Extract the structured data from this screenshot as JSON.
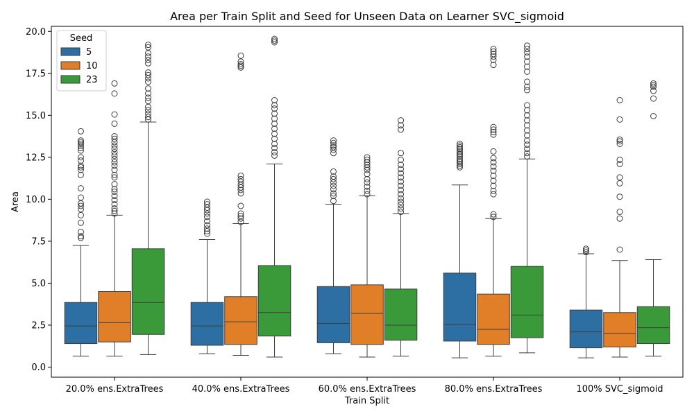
{
  "chart_data": {
    "type": "box",
    "title": "Area per Train Split and Seed for Unseen Data on Learner SVC_sigmoid",
    "xlabel": "Train Split",
    "ylabel": "Area",
    "ylim": [
      -0.6,
      20.3
    ],
    "yticks": [
      "0.0",
      "2.5",
      "5.0",
      "7.5",
      "10.0",
      "12.5",
      "15.0",
      "17.5",
      "20.0"
    ],
    "categories": [
      "20.0% ens.ExtraTrees",
      "40.0% ens.ExtraTrees",
      "60.0% ens.ExtraTrees",
      "80.0% ens.ExtraTrees",
      "100% SVC_sigmoid"
    ],
    "legend": {
      "title": "Seed",
      "position": "upper-left",
      "entries": [
        "5",
        "10",
        "23"
      ]
    },
    "colors": [
      "#2d6fa3",
      "#e07f27",
      "#3a9a3a"
    ],
    "grid": false,
    "series": [
      {
        "name": "5",
        "boxes": [
          {
            "whislo": 0.65,
            "q1": 1.4,
            "med": 2.45,
            "q3": 3.85,
            "whishi": 7.25,
            "fliers": [
              7.7,
              7.8,
              8.05,
              8.6,
              9.05,
              9.4,
              9.6,
              9.75,
              10.1,
              10.65,
              11.45,
              11.75,
              11.9,
              12.0,
              12.3,
              12.5,
              12.9,
              13.05,
              13.2,
              13.3,
              13.4,
              13.5,
              14.05
            ]
          },
          {
            "whislo": 0.8,
            "q1": 1.3,
            "med": 2.45,
            "q3": 3.85,
            "whishi": 7.6,
            "fliers": [
              7.95,
              8.1,
              8.25,
              8.45,
              8.7,
              8.95,
              9.15,
              9.35,
              9.5,
              9.7,
              9.85
            ]
          },
          {
            "whislo": 0.8,
            "q1": 1.45,
            "med": 2.6,
            "q3": 4.8,
            "whishi": 9.7,
            "fliers": [
              9.9,
              10.2,
              10.35,
              10.6,
              10.8,
              11.0,
              11.2,
              11.35,
              11.65,
              12.75,
              12.95,
              13.1,
              13.2,
              13.35,
              13.5
            ]
          },
          {
            "whislo": 0.55,
            "q1": 1.55,
            "med": 2.55,
            "q3": 5.6,
            "whishi": 10.85,
            "fliers": [
              11.9,
              12.0,
              12.1,
              12.2,
              12.3,
              12.4,
              12.5,
              12.6,
              12.7,
              12.8,
              12.9,
              13.0,
              13.1,
              13.2,
              13.3
            ]
          },
          {
            "whislo": 0.55,
            "q1": 1.15,
            "med": 2.1,
            "q3": 3.4,
            "whishi": 6.75,
            "fliers": [
              6.85,
              6.95,
              7.05
            ]
          }
        ]
      },
      {
        "name": "10",
        "boxes": [
          {
            "whislo": 0.65,
            "q1": 1.5,
            "med": 2.65,
            "q3": 4.5,
            "whishi": 9.05,
            "fliers": [
              9.15,
              9.3,
              9.45,
              9.7,
              9.95,
              10.2,
              10.45,
              10.6,
              10.9,
              11.3,
              11.45,
              11.75,
              12.0,
              12.2,
              12.4,
              12.6,
              12.8,
              13.0,
              13.2,
              13.4,
              13.6,
              13.75,
              14.5,
              15.05,
              16.3,
              16.9
            ]
          },
          {
            "whislo": 0.7,
            "q1": 1.35,
            "med": 2.7,
            "q3": 4.2,
            "whishi": 8.55,
            "fliers": [
              8.65,
              8.85,
              9.0,
              9.15,
              9.6,
              10.35,
              10.55,
              10.7,
              10.85,
              11.05,
              11.2,
              11.4,
              17.85,
              17.95,
              18.05,
              18.2,
              18.55
            ]
          },
          {
            "whislo": 0.6,
            "q1": 1.35,
            "med": 3.2,
            "q3": 4.9,
            "whishi": 10.2,
            "fliers": [
              10.3,
              10.5,
              10.75,
              11.0,
              11.2,
              11.5,
              11.75,
              11.9,
              12.05,
              12.2,
              12.35,
              12.5
            ]
          },
          {
            "whislo": 0.65,
            "q1": 1.35,
            "med": 2.25,
            "q3": 4.35,
            "whishi": 8.85,
            "fliers": [
              8.95,
              9.1,
              10.3,
              10.5,
              10.8,
              11.1,
              11.4,
              11.7,
              11.95,
              12.2,
              12.45,
              12.85,
              13.85,
              14.0,
              14.15,
              14.3,
              18.0,
              18.3,
              18.5,
              18.65,
              18.8,
              18.95
            ]
          },
          {
            "whislo": 0.6,
            "q1": 1.2,
            "med": 2.0,
            "q3": 3.25,
            "whishi": 6.35,
            "fliers": [
              7.0,
              8.85,
              9.25,
              10.15,
              10.95,
              11.3,
              12.1,
              12.35,
              13.3,
              13.45,
              13.55,
              14.75,
              15.9
            ]
          }
        ]
      },
      {
        "name": "23",
        "boxes": [
          {
            "whislo": 0.75,
            "q1": 1.95,
            "med": 3.85,
            "q3": 7.05,
            "whishi": 14.6,
            "fliers": [
              14.75,
              14.9,
              15.1,
              15.3,
              15.5,
              15.85,
              16.05,
              16.3,
              16.6,
              17.0,
              17.2,
              17.4,
              17.55,
              18.1,
              18.3,
              18.5,
              18.7,
              19.05,
              19.2
            ]
          },
          {
            "whislo": 0.6,
            "q1": 1.85,
            "med": 3.25,
            "q3": 6.05,
            "whishi": 12.1,
            "fliers": [
              12.6,
              12.8,
              13.05,
              13.3,
              13.6,
              13.9,
              14.2,
              14.5,
              14.8,
              15.1,
              15.4,
              15.6,
              15.9,
              19.35,
              19.45,
              19.55
            ]
          },
          {
            "whislo": 0.65,
            "q1": 1.6,
            "med": 2.5,
            "q3": 4.65,
            "whishi": 9.15,
            "fliers": [
              9.25,
              9.45,
              9.65,
              9.85,
              10.05,
              10.3,
              10.55,
              10.8,
              11.05,
              11.3,
              11.55,
              11.8,
              12.05,
              12.35,
              12.75,
              14.15,
              14.4,
              14.7
            ]
          },
          {
            "whislo": 0.85,
            "q1": 1.75,
            "med": 3.1,
            "q3": 6.0,
            "whishi": 12.4,
            "fliers": [
              12.55,
              12.75,
              13.0,
              13.25,
              13.5,
              13.8,
              14.1,
              14.4,
              14.7,
              15.0,
              15.3,
              15.6,
              16.5,
              16.7,
              17.0,
              17.6,
              17.9,
              18.2,
              18.5,
              18.75,
              18.95,
              19.15
            ]
          },
          {
            "whislo": 0.65,
            "q1": 1.4,
            "med": 2.35,
            "q3": 3.6,
            "whishi": 6.4,
            "fliers": [
              14.95,
              16.0,
              16.45,
              16.7,
              16.8,
              16.9
            ]
          }
        ]
      }
    ]
  }
}
